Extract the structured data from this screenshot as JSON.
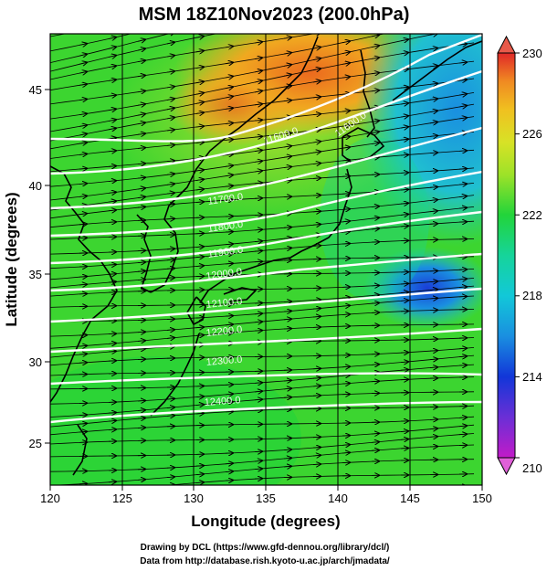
{
  "title": "MSM 18Z10Nov2023 (200.0hPa)",
  "x_axis": {
    "label": "Longitude (degrees)",
    "ticks": [
      "120",
      "125",
      "130",
      "135",
      "140",
      "145",
      "150"
    ]
  },
  "y_axis": {
    "label": "Latitude  (degrees)",
    "ticks": [
      "25",
      "30",
      "35",
      "40",
      "45"
    ]
  },
  "colorbar": {
    "ticks": [
      "230",
      "226",
      "222",
      "218",
      "214",
      "210"
    ],
    "colors": [
      "#c21bc8",
      "#6a2fd6",
      "#1236d8",
      "#1a8fe0",
      "#12c8d8",
      "#16d49a",
      "#22d43a",
      "#3bd530",
      "#9ee228",
      "#d8e226",
      "#f0c020",
      "#f08a22",
      "#e8461e",
      "#e02828"
    ]
  },
  "credits": [
    "Drawing by DCL (https://www.gfd-dennou.org/library/dcl/)",
    "Data from http://database.rish.kyoto-u.ac.jp/arch/jmadata/"
  ],
  "contour_labels": [
    "11600.0",
    "11700.0",
    "11800.0",
    "11900.0",
    "12000.0",
    "12100.0",
    "12200.0",
    "12300.0",
    "12400.0"
  ],
  "map_data": {
    "projection": "equirectangular",
    "lon_range": [
      120,
      150
    ],
    "lat_range": [
      22.4,
      47.6
    ],
    "field": "temperature (200.0hPa)",
    "contour_field": "geopotential height",
    "vector_field": "wind streamlines"
  }
}
